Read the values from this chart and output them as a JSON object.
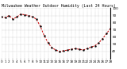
{
  "title": "Milwaukee Weather Outdoor Humidity (Last 24 Hours)",
  "y_values": [
    88,
    87,
    90,
    85,
    88,
    92,
    91,
    90,
    88,
    85,
    75,
    62,
    52,
    45,
    42,
    40,
    41,
    42,
    43,
    44,
    43,
    42,
    44,
    46,
    48,
    52,
    58,
    65,
    72
  ],
  "ylim": [
    30,
    100
  ],
  "xlim": [
    0,
    28
  ],
  "line_color": "#cc0000",
  "marker_color": "#000000",
  "bg_color": "#ffffff",
  "grid_color": "#999999",
  "tick_label_size": 3.0,
  "title_size": 3.5,
  "ylabel_values": [
    40,
    50,
    60,
    70,
    80,
    90,
    100
  ],
  "num_xticks": 29
}
